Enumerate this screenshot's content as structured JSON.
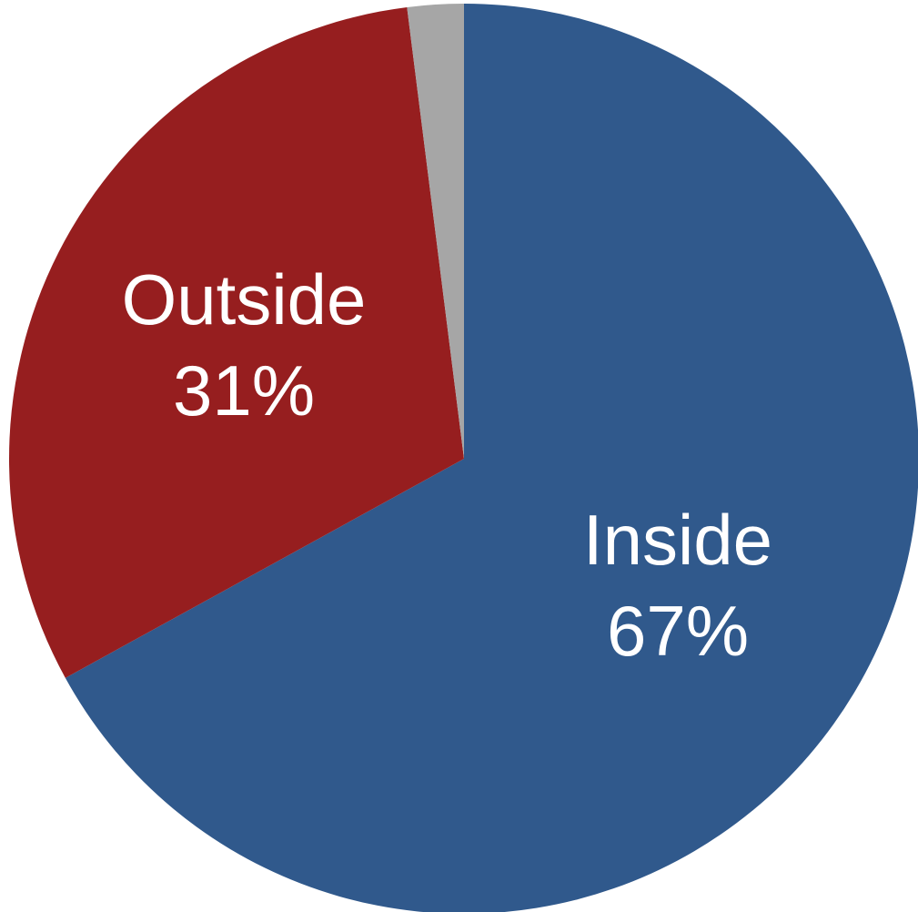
{
  "chart_data": {
    "type": "pie",
    "slices": [
      {
        "label": "Inside",
        "value": 67,
        "value_label": "67%",
        "color": "#30598C"
      },
      {
        "label": "Outside",
        "value": 31,
        "value_label": "31%",
        "color": "#961E1F"
      },
      {
        "label": "",
        "value": 2,
        "value_label": "",
        "color": "#A6A6A6"
      }
    ],
    "start_angle_deg": 0,
    "direction": "clockwise",
    "legend": "none"
  }
}
